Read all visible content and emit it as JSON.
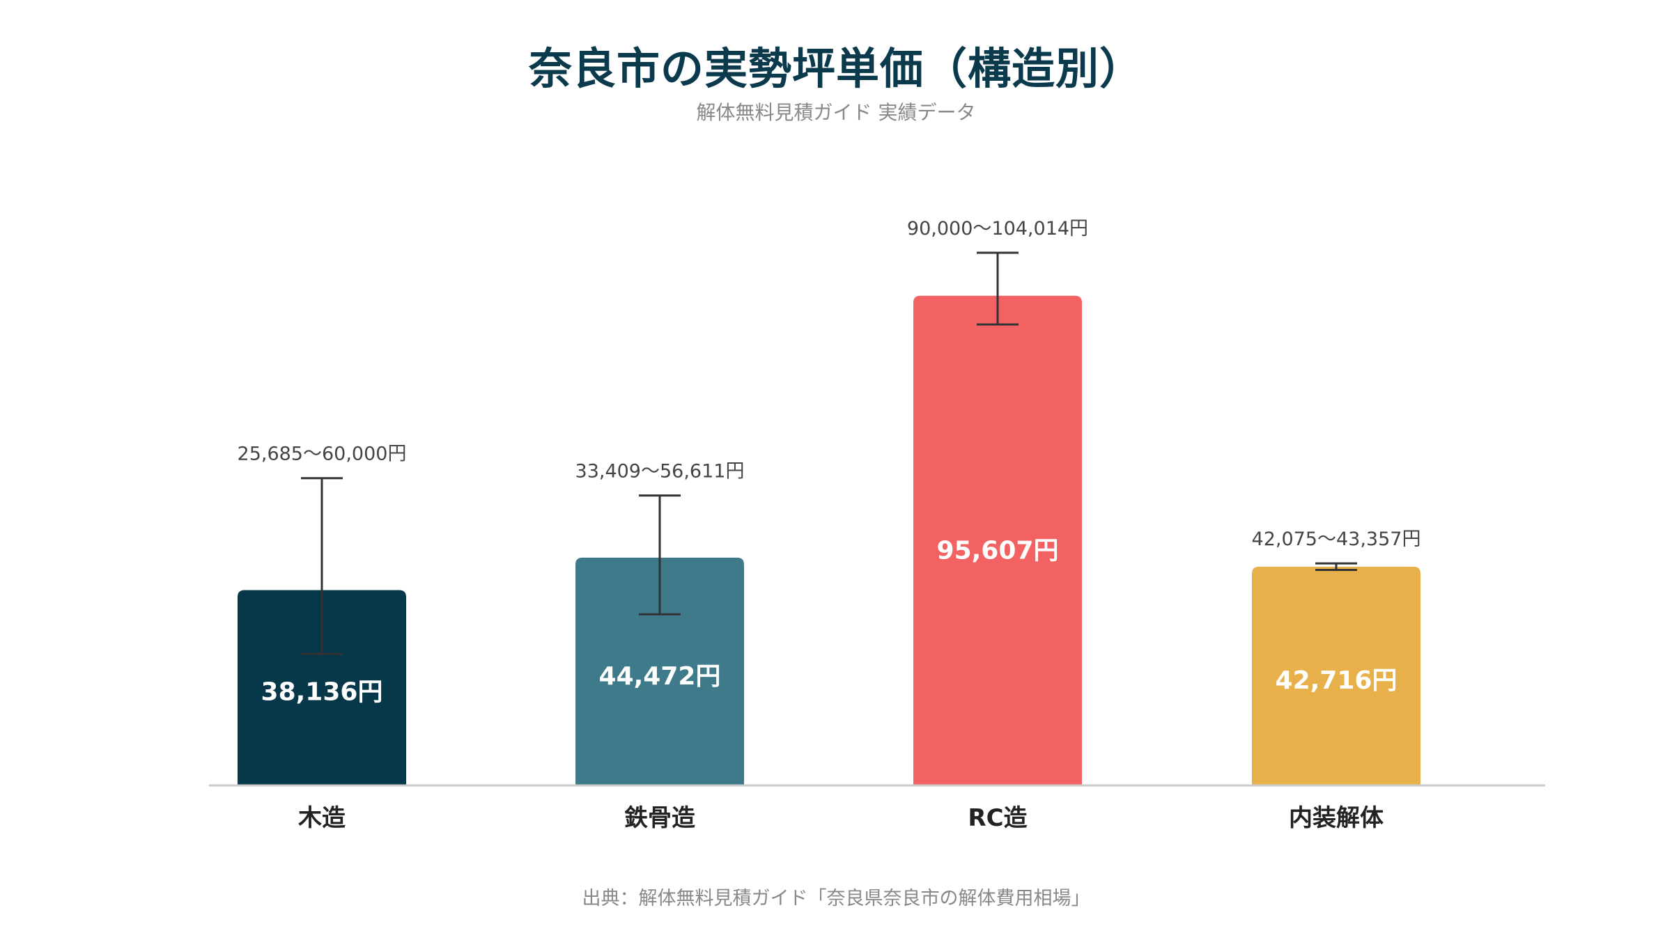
{
  "chart_data": {
    "type": "bar",
    "title": "奈良市の実勢坪単価（構造別）",
    "subtitle": "解体無料見積ガイド 実績データ",
    "source": "出典：解体無料見積ガイド「奈良県奈良市の解体費用相場」",
    "xlabel": "",
    "ylabel": "",
    "ylim": [
      0,
      120000
    ],
    "grid": false,
    "categories": [
      "木造",
      "鉄骨造",
      "RC造",
      "内装解体"
    ],
    "values": [
      38136,
      44472,
      95607,
      42716
    ],
    "value_labels": [
      "38,136円",
      "44,472円",
      "95,607円",
      "42,716円"
    ],
    "ranges": [
      [
        25685,
        60000
      ],
      [
        33409,
        56611
      ],
      [
        90000,
        104014
      ],
      [
        42075,
        43357
      ]
    ],
    "range_labels": [
      "25,685〜60,000円",
      "33,409〜56,611円",
      "90,000〜104,014円",
      "42,075〜43,357円"
    ],
    "colors": [
      "#06384a",
      "#3f7a8a",
      "#f26262",
      "#e8b04a"
    ]
  }
}
